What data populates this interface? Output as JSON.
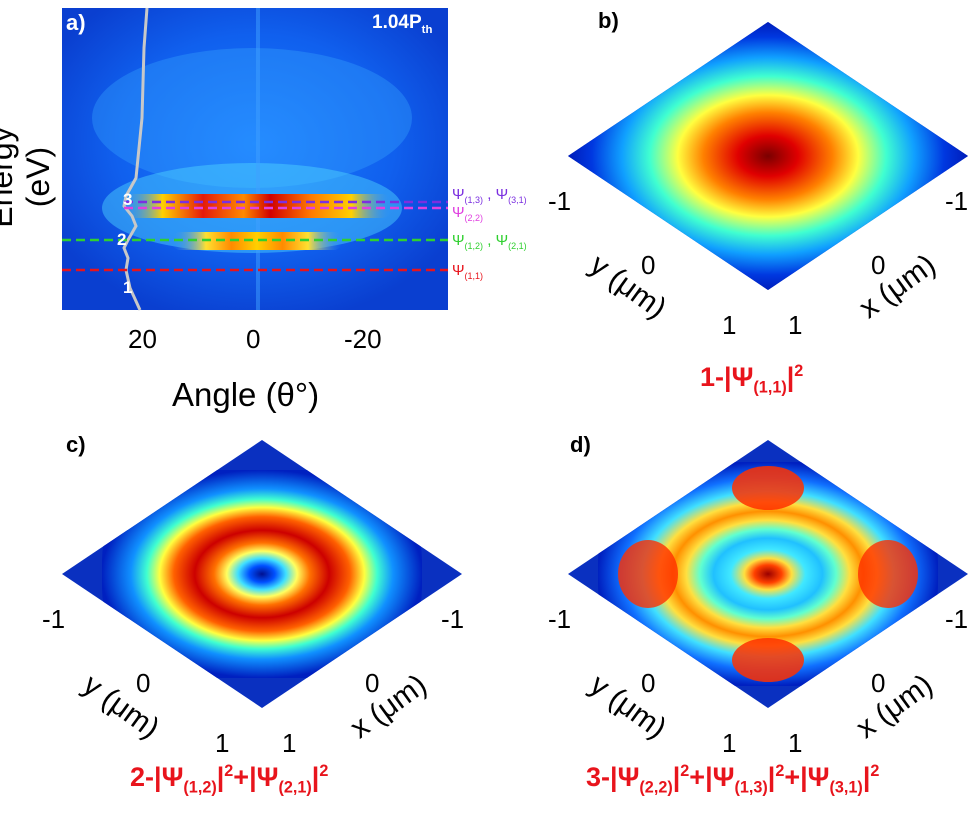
{
  "panel_a": {
    "label": "a)",
    "threshold": "1.04P",
    "threshold_sub": "th",
    "ylabel": "Energy (eV)",
    "xlabel": "Angle (θ°)",
    "xticks": [
      "20",
      "0",
      "-20"
    ],
    "state_numbers": [
      "3",
      "2",
      "1"
    ],
    "levels": [
      {
        "pre": "Ψ",
        "sub": "(1,3)",
        "mid": " , Ψ",
        "sub2": "(3,1)",
        "color": "#7b2fe0"
      },
      {
        "pre": "Ψ",
        "sub": "(2,2)",
        "mid": "",
        "sub2": "",
        "color": "#e040e0"
      },
      {
        "pre": "Ψ",
        "sub": "(1,2)",
        "mid": " , Ψ",
        "sub2": "(2,1)",
        "color": "#30d030"
      },
      {
        "pre": "Ψ",
        "sub": "(1,1)",
        "mid": "",
        "sub2": "",
        "color": "#e8141c"
      }
    ]
  },
  "panel_b": {
    "label": "b)",
    "ticks": {
      "left": "-1",
      "right": "-1",
      "y0": "0",
      "x0": "0",
      "y1": "1",
      "x1": "1"
    },
    "ylabel": "y (μm)",
    "xlabel": "x (μm)",
    "caption": {
      "num": "1-",
      "t1": "|Ψ",
      "s1": "(1,1)",
      "p1": "|",
      "e1": "2"
    }
  },
  "panel_c": {
    "label": "c)",
    "ticks": {
      "left": "-1",
      "right": "-1",
      "y0": "0",
      "x0": "0",
      "y1": "1",
      "x1": "1"
    },
    "ylabel": "y (μm)",
    "xlabel": "x (μm)",
    "caption": {
      "num": "2-",
      "t1": "|Ψ",
      "s1": "(1,2)",
      "p1": "|",
      "e1": "2",
      "plus1": "+|Ψ",
      "s2": "(2,1)",
      "p2": "|",
      "e2": "2"
    }
  },
  "panel_d": {
    "label": "d)",
    "ticks": {
      "left": "-1",
      "right": "-1",
      "y0": "0",
      "x0": "0",
      "y1": "1",
      "x1": "1"
    },
    "ylabel": "y (μm)",
    "xlabel": "x (μm)",
    "caption": {
      "num": "3-",
      "t1": "|Ψ",
      "s1": "(2,2)",
      "p1": "|",
      "e1": "2",
      "plus1": "+|Ψ",
      "s2": "(1,3)",
      "p2": "|",
      "e2": "2",
      "plus2": "+|Ψ",
      "s3": "(3,1)",
      "p3": "|",
      "e3": "2"
    }
  }
}
